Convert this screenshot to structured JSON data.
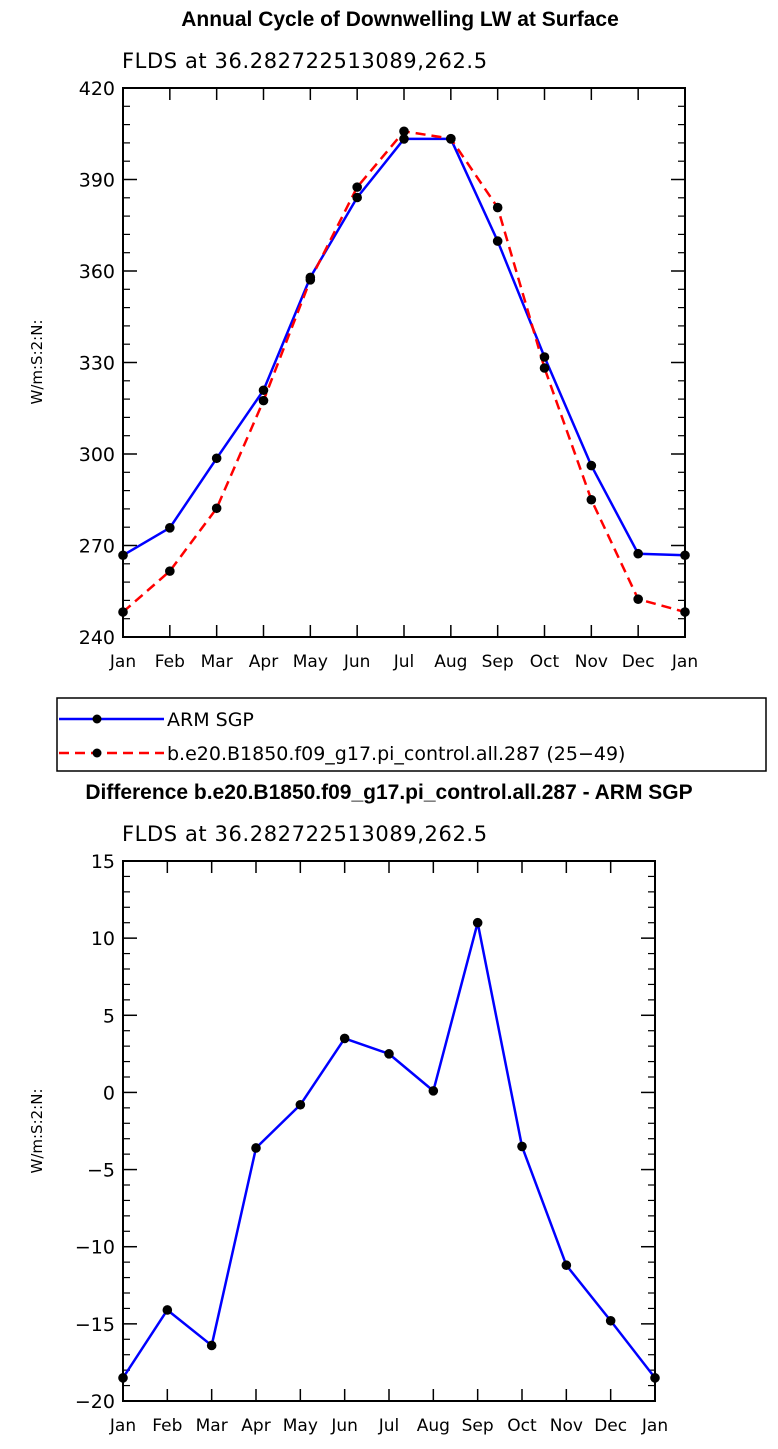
{
  "colors": {
    "obs": "#0000ff",
    "model": "#ff0000",
    "marker": "#000000",
    "axis": "#000000"
  },
  "chart_data": [
    {
      "type": "line",
      "title": "Annual Cycle of Downwelling LW at Surface",
      "subtitle": "FLDS at 36.282722513089,262.5",
      "xlabel": "",
      "ylabel": "W/m:S:2:N:",
      "categories": [
        "Jan",
        "Feb",
        "Mar",
        "Apr",
        "May",
        "Jun",
        "Jul",
        "Aug",
        "Sep",
        "Oct",
        "Nov",
        "Dec",
        "Jan"
      ],
      "ylim": [
        240,
        420
      ],
      "yticks": [
        240,
        270,
        300,
        330,
        360,
        390,
        420
      ],
      "series": [
        {
          "name": "ARM SGP",
          "style": "solid",
          "values": [
            266.8,
            275.8,
            298.6,
            320.9,
            357.9,
            384.1,
            403.3,
            403.3,
            369.8,
            331.8,
            296.2,
            267.3,
            266.8
          ]
        },
        {
          "name": "b.e20.B1850.f09_g17.pi_control.all.287 (25−49)",
          "style": "dashed",
          "values": [
            248.2,
            261.6,
            282.2,
            317.5,
            357.1,
            387.5,
            405.8,
            403.4,
            380.8,
            328.2,
            285.0,
            252.4,
            248.2
          ]
        }
      ],
      "legend": [
        "ARM SGP",
        "b.e20.B1850.f09_g17.pi_control.all.287 (25−49)"
      ]
    },
    {
      "type": "line",
      "title": "Difference b.e20.B1850.f09_g17.pi_control.all.287 - ARM SGP",
      "subtitle": "FLDS at 36.282722513089,262.5",
      "xlabel": "",
      "ylabel": "W/m:S:2:N:",
      "categories": [
        "Jan",
        "Feb",
        "Mar",
        "Apr",
        "May",
        "Jun",
        "Jul",
        "Aug",
        "Sep",
        "Oct",
        "Nov",
        "Dec",
        "Jan"
      ],
      "ylim": [
        -20,
        15
      ],
      "yticks": [
        -20,
        -15,
        -10,
        -5,
        0,
        5,
        10,
        15
      ],
      "ytick_labels": [
        "−20",
        "−15",
        "−10",
        "−5",
        "0",
        "5",
        "10",
        "15"
      ],
      "series": [
        {
          "name": "Difference",
          "style": "solid",
          "values": [
            -18.5,
            -14.1,
            -16.4,
            -3.6,
            -0.8,
            3.5,
            2.5,
            0.1,
            11.0,
            -3.5,
            -11.2,
            -14.8,
            -18.5
          ]
        }
      ]
    }
  ]
}
